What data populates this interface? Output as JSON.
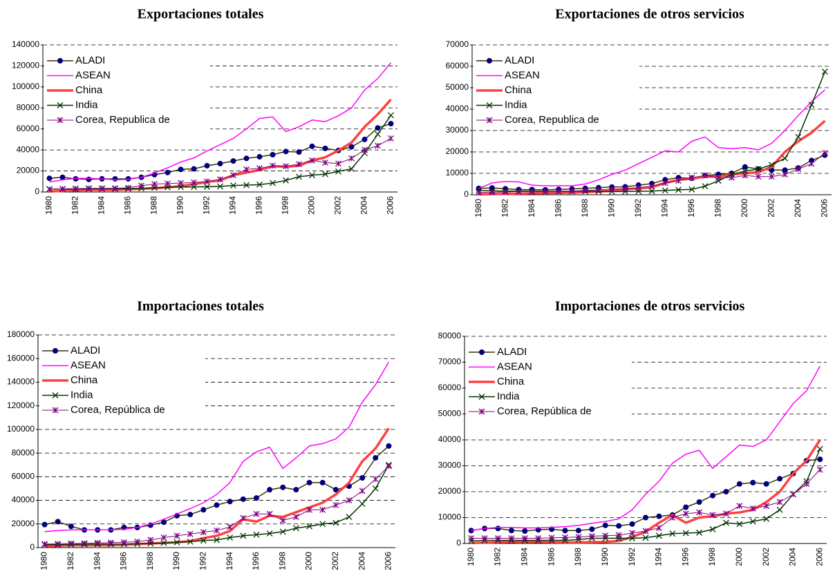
{
  "chart_data": [
    {
      "type": "line",
      "title": "Exportaciones totales",
      "categories": [
        1980,
        null,
        1982,
        null,
        1984,
        null,
        1986,
        null,
        1988,
        null,
        1990,
        null,
        1992,
        null,
        1994,
        null,
        1996,
        null,
        1998,
        null,
        2000,
        null,
        2002,
        null,
        2004,
        null,
        2006
      ],
      "ylim": [
        0,
        140000
      ],
      "yticks": [
        0,
        20000,
        40000,
        60000,
        80000,
        100000,
        120000,
        140000
      ],
      "grid": true,
      "legend": "upper left",
      "series": [
        {
          "name": "ALADI",
          "color": "#333300",
          "marker": "circle",
          "marker_color": "#000080",
          "line_width": 1.5,
          "values": [
            13000,
            14000,
            12500,
            12000,
            12500,
            12500,
            12500,
            14000,
            16500,
            18500,
            21500,
            22000,
            25000,
            27000,
            29500,
            32000,
            33500,
            35500,
            38500,
            38000,
            43500,
            41500,
            39500,
            43000,
            50000,
            61000,
            65000
          ]
        },
        {
          "name": "ASEAN",
          "color": "#ff00ff",
          "line_width": 1.5,
          "values": [
            9500,
            11500,
            13000,
            13000,
            12500,
            11500,
            12000,
            14000,
            18000,
            23000,
            28500,
            32500,
            39000,
            45000,
            51000,
            60000,
            70000,
            71500,
            57500,
            62000,
            68500,
            67000,
            72500,
            80000,
            97000,
            108000,
            123000
          ]
        },
        {
          "name": "China",
          "color": "#ff4040",
          "line_width": 3.5,
          "values": [
            500,
            1000,
            1500,
            2000,
            2000,
            2000,
            2500,
            3000,
            3500,
            4500,
            5500,
            7500,
            9500,
            11000,
            16000,
            18500,
            21000,
            24500,
            24000,
            25000,
            30000,
            33000,
            39500,
            47000,
            62000,
            74000,
            88000
          ]
        },
        {
          "name": "India",
          "color": "#003300",
          "marker": "x",
          "marker_color": "#003300",
          "line_width": 1.5,
          "values": [
            2800,
            2800,
            2800,
            3000,
            3000,
            3000,
            3200,
            3500,
            4000,
            4500,
            4700,
            4800,
            5000,
            5300,
            6200,
            6500,
            7000,
            8500,
            11000,
            14500,
            16000,
            17000,
            19500,
            22000,
            37000,
            55000,
            73000
          ]
        },
        {
          "name": "Corea, Republica de",
          "color": "#800080",
          "marker": "star",
          "marker_color": "#800080",
          "line_width": 1,
          "values": [
            2500,
            3000,
            3200,
            3500,
            3500,
            3500,
            4000,
            6000,
            7500,
            8000,
            8500,
            9000,
            10000,
            12000,
            16000,
            21500,
            22500,
            25000,
            24500,
            26500,
            30000,
            28000,
            27000,
            32000,
            40000,
            44000,
            51000
          ]
        }
      ]
    },
    {
      "type": "line",
      "title": "Exportaciones de otros servicios",
      "categories": [
        1980,
        null,
        1982,
        null,
        1984,
        null,
        1986,
        null,
        1988,
        null,
        1990,
        null,
        1992,
        null,
        1994,
        null,
        1996,
        null,
        1998,
        null,
        2000,
        null,
        2002,
        null,
        2004,
        null,
        2006
      ],
      "ylim": [
        0,
        70000
      ],
      "yticks": [
        0,
        10000,
        20000,
        30000,
        40000,
        50000,
        60000,
        70000
      ],
      "grid": true,
      "legend": "upper left",
      "series": [
        {
          "name": "ALADI",
          "color": "#333300",
          "marker": "circle",
          "marker_color": "#000080",
          "line_width": 1.5,
          "values": [
            3000,
            3200,
            2800,
            2400,
            2400,
            2300,
            2500,
            2700,
            3000,
            3300,
            3600,
            3700,
            4500,
            5200,
            7000,
            8000,
            7700,
            9000,
            9500,
            10000,
            13000,
            12000,
            11500,
            11500,
            12500,
            16000,
            18500
          ]
        },
        {
          "name": "ASEAN",
          "color": "#ff00ff",
          "line_width": 1.5,
          "values": [
            3000,
            5500,
            6200,
            6000,
            4500,
            4200,
            4200,
            4200,
            5000,
            7000,
            9500,
            11500,
            14500,
            17500,
            20500,
            20000,
            25000,
            27000,
            22000,
            21500,
            22000,
            21000,
            24000,
            30000,
            37000,
            43500,
            49000
          ]
        },
        {
          "name": "China",
          "color": "#ff4040",
          "line_width": 3.5,
          "values": [
            200,
            300,
            400,
            500,
            700,
            800,
            900,
            1000,
            1200,
            1500,
            1800,
            2500,
            3000,
            3500,
            5500,
            7000,
            7500,
            8500,
            8500,
            9500,
            10000,
            10500,
            13000,
            20000,
            25000,
            29000,
            34500
          ]
        },
        {
          "name": "India",
          "color": "#003300",
          "marker": "x",
          "marker_color": "#003300",
          "line_width": 1.5,
          "values": [
            2000,
            1800,
            1700,
            1700,
            1700,
            1600,
            1600,
            1600,
            1700,
            1600,
            1500,
            1500,
            1600,
            1700,
            2000,
            2300,
            2500,
            4000,
            6500,
            9500,
            11000,
            12000,
            14000,
            17000,
            27000,
            42000,
            57500
          ]
        },
        {
          "name": "Corea, Republica de",
          "color": "#800080",
          "marker": "star",
          "marker_color": "#800080",
          "line_width": 1,
          "values": [
            1000,
            1200,
            1300,
            1500,
            1500,
            1500,
            1600,
            1700,
            2000,
            2300,
            2600,
            2900,
            3300,
            4000,
            5500,
            6500,
            8000,
            9000,
            8000,
            8000,
            9000,
            8500,
            8500,
            9500,
            12000,
            14500,
            19500
          ]
        }
      ]
    },
    {
      "type": "line",
      "title": "Importaciones totales",
      "categories": [
        1980,
        null,
        1982,
        null,
        1984,
        null,
        1986,
        null,
        1988,
        null,
        1990,
        null,
        1992,
        null,
        1994,
        null,
        1996,
        null,
        1998,
        null,
        2000,
        null,
        2002,
        null,
        2004,
        null,
        2006
      ],
      "ylim": [
        0,
        180000
      ],
      "yticks": [
        0,
        20000,
        40000,
        60000,
        80000,
        100000,
        120000,
        140000,
        160000,
        180000
      ],
      "grid": true,
      "legend": "upper left",
      "series": [
        {
          "name": "ALADI",
          "color": "#333300",
          "marker": "circle",
          "marker_color": "#000080",
          "line_width": 1.5,
          "values": [
            19500,
            22000,
            18000,
            15000,
            15000,
            15000,
            17000,
            17000,
            19000,
            21500,
            27000,
            28000,
            32000,
            36000,
            39000,
            41000,
            42000,
            49000,
            51000,
            49000,
            55000,
            55000,
            49000,
            52000,
            59000,
            76000,
            86000
          ]
        },
        {
          "name": "ASEAN",
          "color": "#ff00ff",
          "line_width": 1.5,
          "values": [
            13500,
            14500,
            15000,
            15000,
            15000,
            15000,
            15500,
            17000,
            20000,
            24000,
            28500,
            33000,
            38000,
            45000,
            55000,
            73000,
            81000,
            85000,
            67000,
            76000,
            86000,
            88000,
            92000,
            102000,
            123000,
            138000,
            157000
          ]
        },
        {
          "name": "China",
          "color": "#ff4040",
          "line_width": 3.5,
          "values": [
            1000,
            1500,
            2000,
            2000,
            2000,
            2000,
            2500,
            3000,
            3500,
            4000,
            4500,
            5500,
            8000,
            10000,
            14000,
            24000,
            22000,
            27000,
            26000,
            30000,
            34000,
            38000,
            45000,
            55000,
            73000,
            84000,
            101000
          ]
        },
        {
          "name": "India",
          "color": "#003300",
          "marker": "x",
          "marker_color": "#003300",
          "line_width": 1.5,
          "values": [
            2500,
            2500,
            2700,
            2800,
            3000,
            3000,
            3000,
            3200,
            3500,
            4000,
            4500,
            5000,
            6000,
            6500,
            8500,
            10000,
            11000,
            12000,
            13500,
            16500,
            18000,
            20000,
            21000,
            26000,
            37000,
            50000,
            70000
          ]
        },
        {
          "name": "Corea, República de",
          "color": "#800080",
          "marker": "star",
          "marker_color": "#800080",
          "line_width": 1,
          "values": [
            3000,
            3200,
            3500,
            3700,
            4000,
            4200,
            4500,
            5000,
            6500,
            8500,
            10000,
            11500,
            13000,
            14500,
            17500,
            25000,
            28500,
            28500,
            23000,
            26000,
            32000,
            32000,
            36000,
            40000,
            48000,
            58000,
            69000
          ]
        }
      ]
    },
    {
      "type": "line",
      "title": "Importaciones de otros servicios",
      "categories": [
        1980,
        null,
        1982,
        null,
        1984,
        null,
        1986,
        null,
        1988,
        null,
        1990,
        null,
        1992,
        null,
        1994,
        null,
        1996,
        null,
        1998,
        null,
        2000,
        null,
        2002,
        null,
        2004,
        null,
        2006
      ],
      "ylim": [
        0,
        80000
      ],
      "yticks": [
        0,
        10000,
        20000,
        30000,
        40000,
        50000,
        60000,
        70000,
        80000
      ],
      "grid": true,
      "legend": "upper left",
      "series": [
        {
          "name": "ALADI",
          "color": "#333300",
          "marker": "circle",
          "marker_color": "#000080",
          "line_width": 1.5,
          "values": [
            5000,
            5800,
            5800,
            5000,
            4800,
            5300,
            5500,
            5000,
            5000,
            5500,
            7000,
            6800,
            7500,
            10000,
            10500,
            11000,
            14000,
            16000,
            18500,
            20000,
            23000,
            23500,
            23000,
            25000,
            27000,
            32000,
            32500
          ]
        },
        {
          "name": "ASEAN",
          "color": "#ff00ff",
          "line_width": 1.5,
          "values": [
            5000,
            5800,
            6200,
            6200,
            6000,
            6000,
            6200,
            6500,
            7000,
            7800,
            8500,
            9500,
            13000,
            19000,
            24000,
            31000,
            34500,
            36000,
            29000,
            33500,
            38000,
            37500,
            40000,
            47000,
            54000,
            59000,
            68500
          ]
        },
        {
          "name": "China",
          "color": "#ff4040",
          "line_width": 3.5,
          "values": [
            200,
            300,
            500,
            600,
            700,
            600,
            500,
            400,
            400,
            500,
            600,
            1000,
            2500,
            4500,
            8000,
            11000,
            8000,
            10000,
            10500,
            11500,
            12000,
            13000,
            16000,
            20000,
            27000,
            32000,
            40000
          ]
        },
        {
          "name": "India",
          "color": "#003300",
          "marker": "x",
          "marker_color": "#003300",
          "line_width": 1.5,
          "values": [
            1000,
            1200,
            1200,
            1200,
            1200,
            1200,
            1200,
            1200,
            1500,
            2000,
            2000,
            2000,
            2000,
            2200,
            3000,
            3800,
            4000,
            4200,
            5500,
            8000,
            7500,
            8500,
            9500,
            13000,
            19000,
            24000,
            36500
          ]
        },
        {
          "name": "Corea, República de",
          "color": "#800080",
          "marker": "star",
          "marker_color": "#800080",
          "line_width": 1,
          "values": [
            2000,
            2000,
            2000,
            2000,
            2000,
            2000,
            2200,
            2300,
            2500,
            2800,
            3000,
            3200,
            4000,
            4800,
            6000,
            10000,
            11500,
            12000,
            11000,
            11500,
            14500,
            13500,
            14500,
            16000,
            19000,
            23000,
            28500
          ]
        }
      ]
    }
  ]
}
